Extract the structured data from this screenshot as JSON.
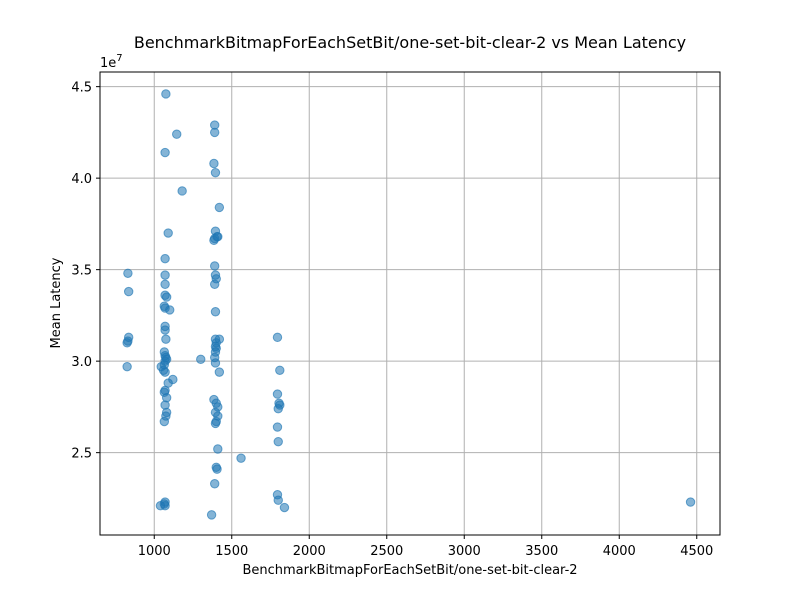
{
  "chart_data": {
    "type": "scatter",
    "title": "BenchmarkBitmapForEachSetBit/one-set-bit-clear-2 vs Mean Latency",
    "xlabel": "BenchmarkBitmapForEachSetBit/one-set-bit-clear-2",
    "ylabel": "Mean Latency",
    "y_offset_label": "1e7",
    "xlim": [
      650,
      4650
    ],
    "ylim": [
      20500000,
      45800000
    ],
    "x_ticks": [
      1000,
      1500,
      2000,
      2500,
      3000,
      3500,
      4000,
      4500
    ],
    "x_tick_labels": [
      "1000",
      "1500",
      "2000",
      "2500",
      "3000",
      "3500",
      "4000",
      "4500"
    ],
    "y_ticks": [
      25000000,
      30000000,
      35000000,
      40000000,
      45000000
    ],
    "y_tick_labels": [
      "2.5",
      "3.0",
      "3.5",
      "4.0",
      "4.5"
    ],
    "grid": true,
    "marker_color": "#1f77b4",
    "marker_alpha": 0.55,
    "points": [
      [
        1075,
        44600000
      ],
      [
        1390,
        42900000
      ],
      [
        1145,
        42400000
      ],
      [
        1390,
        42500000
      ],
      [
        1070,
        41400000
      ],
      [
        1385,
        40800000
      ],
      [
        1395,
        40300000
      ],
      [
        1180,
        39300000
      ],
      [
        1420,
        38400000
      ],
      [
        1090,
        37000000
      ],
      [
        1395,
        37100000
      ],
      [
        1405,
        36800000
      ],
      [
        1410,
        36800000
      ],
      [
        1390,
        36700000
      ],
      [
        1385,
        36600000
      ],
      [
        1070,
        35600000
      ],
      [
        1390,
        35200000
      ],
      [
        830,
        34800000
      ],
      [
        1070,
        34700000
      ],
      [
        1395,
        34700000
      ],
      [
        1400,
        34500000
      ],
      [
        1390,
        34200000
      ],
      [
        1070,
        34200000
      ],
      [
        835,
        33800000
      ],
      [
        1070,
        33600000
      ],
      [
        1080,
        33500000
      ],
      [
        1065,
        33000000
      ],
      [
        1070,
        32900000
      ],
      [
        1100,
        32800000
      ],
      [
        1395,
        32700000
      ],
      [
        1070,
        31900000
      ],
      [
        1070,
        31700000
      ],
      [
        835,
        31300000
      ],
      [
        830,
        31100000
      ],
      [
        825,
        31000000
      ],
      [
        1075,
        31200000
      ],
      [
        1395,
        31200000
      ],
      [
        1420,
        31200000
      ],
      [
        1400,
        31000000
      ],
      [
        1395,
        30800000
      ],
      [
        1400,
        30700000
      ],
      [
        1395,
        30500000
      ],
      [
        1065,
        30500000
      ],
      [
        1070,
        30300000
      ],
      [
        1075,
        30200000
      ],
      [
        1080,
        30100000
      ],
      [
        1070,
        30000000
      ],
      [
        1300,
        30100000
      ],
      [
        1390,
        30200000
      ],
      [
        1395,
        29900000
      ],
      [
        1065,
        29800000
      ],
      [
        1045,
        29700000
      ],
      [
        825,
        29700000
      ],
      [
        1070,
        29400000
      ],
      [
        1060,
        29500000
      ],
      [
        1420,
        29400000
      ],
      [
        1120,
        29000000
      ],
      [
        1090,
        28800000
      ],
      [
        1070,
        28400000
      ],
      [
        1065,
        28300000
      ],
      [
        1080,
        28000000
      ],
      [
        1385,
        27900000
      ],
      [
        1400,
        27700000
      ],
      [
        1410,
        27500000
      ],
      [
        1070,
        27600000
      ],
      [
        1395,
        27200000
      ],
      [
        1080,
        27200000
      ],
      [
        1075,
        27000000
      ],
      [
        1410,
        27000000
      ],
      [
        1400,
        26700000
      ],
      [
        1395,
        26600000
      ],
      [
        1065,
        26700000
      ],
      [
        1410,
        25200000
      ],
      [
        1560,
        24700000
      ],
      [
        1400,
        24200000
      ],
      [
        1405,
        24100000
      ],
      [
        1390,
        23300000
      ],
      [
        1070,
        22300000
      ],
      [
        1065,
        22200000
      ],
      [
        1040,
        22100000
      ],
      [
        1070,
        22100000
      ],
      [
        1370,
        21600000
      ],
      [
        1795,
        31300000
      ],
      [
        1810,
        29500000
      ],
      [
        1795,
        28200000
      ],
      [
        1805,
        27700000
      ],
      [
        1810,
        27600000
      ],
      [
        1800,
        27400000
      ],
      [
        1795,
        26400000
      ],
      [
        1800,
        25600000
      ],
      [
        1795,
        22700000
      ],
      [
        1800,
        22400000
      ],
      [
        1840,
        22000000
      ],
      [
        4460,
        22300000
      ]
    ]
  }
}
